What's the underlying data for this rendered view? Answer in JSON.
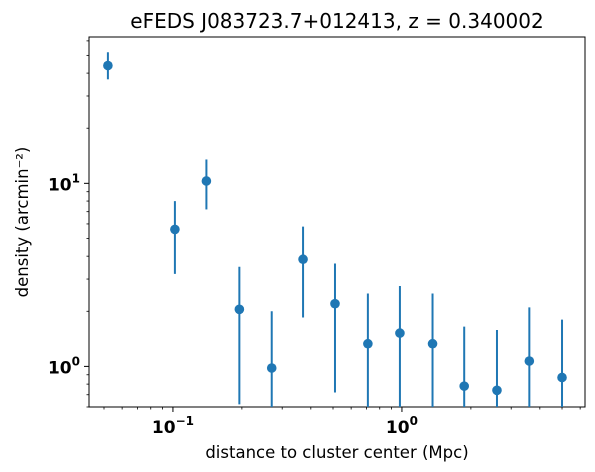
{
  "chart_data": {
    "type": "scatter",
    "title": "eFEDS J083723.7+012413, z = 0.340002",
    "xlabel": "distance to cluster center (Mpc)",
    "ylabel": "density (arcmin⁻²)",
    "xscale": "log",
    "yscale": "log",
    "xlim": [
      0.043,
      6.3
    ],
    "ylim": [
      0.6,
      63
    ],
    "x_ticks": [
      {
        "value": 0.1,
        "base": "10",
        "exp": "−1"
      },
      {
        "value": 1,
        "base": "10",
        "exp": "0"
      }
    ],
    "y_ticks": [
      {
        "value": 1,
        "base": "10",
        "exp": "0"
      },
      {
        "value": 10,
        "base": "10",
        "exp": "1"
      }
    ],
    "grid": false,
    "legend": "none",
    "color": "#1f77b4",
    "points": [
      {
        "x": 0.052,
        "y": 44,
        "err_low": 37,
        "err_high": 52
      },
      {
        "x": 0.102,
        "y": 5.6,
        "err_low": 3.2,
        "err_high": 8.0
      },
      {
        "x": 0.14,
        "y": 10.3,
        "err_low": 7.2,
        "err_high": 13.5
      },
      {
        "x": 0.195,
        "y": 2.05,
        "err_low": 0.62,
        "err_high": 3.5
      },
      {
        "x": 0.27,
        "y": 0.98,
        "err_low": 0.6,
        "err_high": 2.0
      },
      {
        "x": 0.37,
        "y": 3.85,
        "err_low": 1.85,
        "err_high": 5.8
      },
      {
        "x": 0.51,
        "y": 2.2,
        "err_low": 0.72,
        "err_high": 3.65
      },
      {
        "x": 0.71,
        "y": 1.33,
        "err_low": 0.6,
        "err_high": 2.5
      },
      {
        "x": 0.98,
        "y": 1.52,
        "err_low": 0.6,
        "err_high": 2.75
      },
      {
        "x": 1.36,
        "y": 1.33,
        "err_low": 0.6,
        "err_high": 2.5
      },
      {
        "x": 1.87,
        "y": 0.78,
        "err_low": 0.6,
        "err_high": 1.65
      },
      {
        "x": 2.6,
        "y": 0.74,
        "err_low": 0.6,
        "err_high": 1.58
      },
      {
        "x": 3.6,
        "y": 1.07,
        "err_low": 0.6,
        "err_high": 2.1
      },
      {
        "x": 5.0,
        "y": 0.87,
        "err_low": 0.6,
        "err_high": 1.8
      }
    ]
  }
}
